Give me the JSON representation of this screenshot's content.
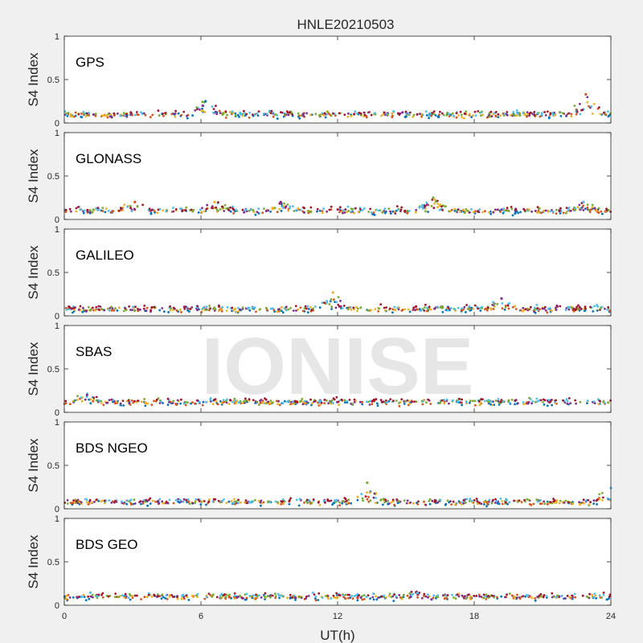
{
  "figure": {
    "title": "HNLE20210503",
    "watermark": "IONISE",
    "xlabel": "UT(h)",
    "background": "#f0f0f0"
  },
  "chart_data": {
    "type": "scatter",
    "title": "HNLE20210503",
    "xlabel": "UT(h)",
    "xlim": [
      0,
      24
    ],
    "xticks": [
      0,
      6,
      12,
      18,
      24
    ],
    "series_colors": [
      "#0072bd",
      "#d95319",
      "#edb120",
      "#7e2f8e",
      "#77ac30",
      "#4dbeee",
      "#a2142f"
    ],
    "panels": [
      {
        "name": "GPS",
        "ylabel": "S4 Index",
        "ylim": [
          0,
          1
        ],
        "yticks": [
          0,
          0.5,
          1
        ],
        "typical_s4": 0.1,
        "peaks": [
          {
            "x": 6.2,
            "y": 0.25
          },
          {
            "x": 22.9,
            "y": 0.33
          }
        ]
      },
      {
        "name": "GLONASS",
        "ylabel": "S4 Index",
        "ylim": [
          0,
          1
        ],
        "yticks": [
          0,
          0.5,
          1
        ],
        "typical_s4": 0.1,
        "peaks": [
          {
            "x": 3.1,
            "y": 0.2
          },
          {
            "x": 6.6,
            "y": 0.2
          },
          {
            "x": 9.5,
            "y": 0.2
          },
          {
            "x": 16.2,
            "y": 0.25
          },
          {
            "x": 22.8,
            "y": 0.2
          }
        ]
      },
      {
        "name": "GALILEO",
        "ylabel": "S4 Index",
        "ylim": [
          0,
          1
        ],
        "yticks": [
          0,
          0.5,
          1
        ],
        "typical_s4": 0.08,
        "peaks": [
          {
            "x": 11.8,
            "y": 0.27
          },
          {
            "x": 19.2,
            "y": 0.2
          }
        ]
      },
      {
        "name": "SBAS",
        "ylabel": "S4 Index",
        "ylim": [
          0,
          1
        ],
        "yticks": [
          0,
          0.5,
          1
        ],
        "typical_s4": 0.12,
        "peaks": [
          {
            "x": 1.0,
            "y": 0.2
          }
        ]
      },
      {
        "name": "BDS NGEO",
        "ylabel": "S4 Index",
        "ylim": [
          0,
          1
        ],
        "yticks": [
          0,
          0.5,
          1
        ],
        "typical_s4": 0.08,
        "peaks": [
          {
            "x": 13.3,
            "y": 0.3
          },
          {
            "x": 24.0,
            "y": 0.24
          }
        ]
      },
      {
        "name": "BDS GEO",
        "ylabel": "S4 Index",
        "ylim": [
          0,
          1
        ],
        "yticks": [
          0,
          0.5,
          1
        ],
        "typical_s4": 0.1,
        "peaks": [
          {
            "x": 15.5,
            "y": 0.14
          }
        ]
      }
    ]
  }
}
